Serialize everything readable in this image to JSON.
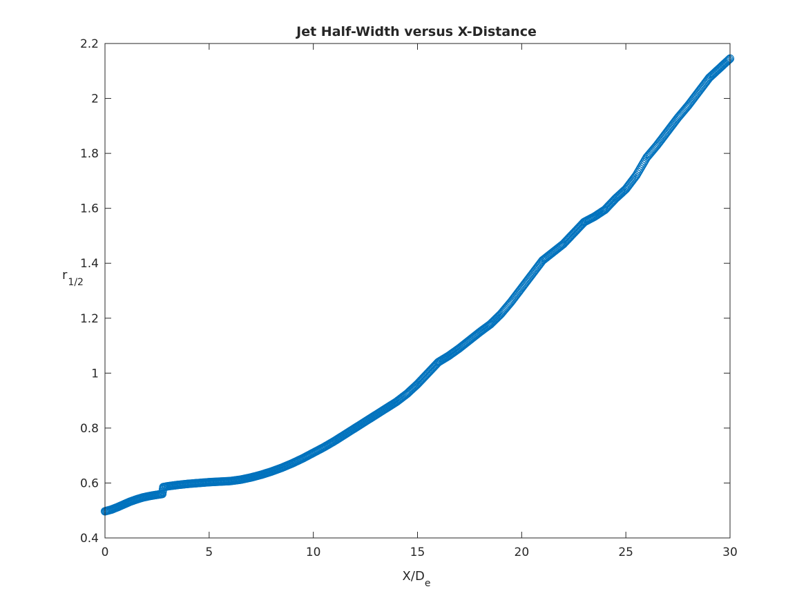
{
  "chart_data": {
    "type": "scatter",
    "title": "Jet Half-Width versus X-Distance",
    "xlabel": {
      "main": "X/D",
      "subscript": "e"
    },
    "ylabel": {
      "main": "r",
      "subscript": "1/2"
    },
    "xlim": [
      0,
      30
    ],
    "ylim": [
      0.4,
      2.2
    ],
    "x_ticks": [
      0,
      5,
      10,
      15,
      20,
      25,
      30
    ],
    "x_tick_labels": [
      "0",
      "5",
      "10",
      "15",
      "20",
      "25",
      "30"
    ],
    "y_ticks": [
      0.4,
      0.6,
      0.8,
      1.0,
      1.2,
      1.4,
      1.6,
      1.8,
      2.0,
      2.2
    ],
    "y_tick_labels": [
      "0.4",
      "0.6",
      "0.8",
      "1",
      "1.2",
      "1.4",
      "1.6",
      "1.8",
      "2",
      "2.2"
    ],
    "grid": false,
    "legend": "none",
    "marker": "open-circle",
    "marker_color": "#0072BD",
    "series": [
      {
        "x": [
          0.0,
          0.3,
          0.6,
          0.9,
          1.2,
          1.5,
          1.8,
          2.1,
          2.4,
          2.75,
          2.8,
          3.0,
          3.5,
          4.0,
          4.5,
          5.0,
          5.5,
          6.0,
          6.5,
          7.0,
          7.5,
          8.0,
          8.5,
          9.0,
          9.5,
          10.0,
          10.5,
          11.0,
          11.5,
          12.0,
          12.5,
          13.0,
          13.5,
          14.0,
          14.5,
          15.0,
          15.5,
          16.0,
          16.5,
          17.0,
          17.5,
          18.0,
          18.5,
          19.0,
          19.5,
          20.0,
          20.5,
          21.0,
          21.5,
          22.0,
          22.5,
          23.0,
          23.5,
          24.0,
          24.5,
          25.0,
          25.5,
          26.0,
          26.5,
          27.0,
          27.5,
          28.0,
          28.5,
          29.0,
          29.5,
          30.0
        ],
        "y": [
          0.497,
          0.503,
          0.512,
          0.522,
          0.532,
          0.54,
          0.547,
          0.552,
          0.556,
          0.56,
          0.585,
          0.588,
          0.593,
          0.597,
          0.6,
          0.603,
          0.605,
          0.607,
          0.612,
          0.62,
          0.63,
          0.642,
          0.656,
          0.672,
          0.69,
          0.71,
          0.73,
          0.752,
          0.776,
          0.8,
          0.824,
          0.848,
          0.872,
          0.896,
          0.925,
          0.96,
          1.0,
          1.04,
          1.063,
          1.09,
          1.12,
          1.15,
          1.178,
          1.215,
          1.26,
          1.31,
          1.36,
          1.41,
          1.44,
          1.47,
          1.51,
          1.55,
          1.57,
          1.595,
          1.635,
          1.67,
          1.72,
          1.785,
          1.83,
          1.88,
          1.93,
          1.975,
          2.025,
          2.075,
          2.11,
          2.145
        ]
      }
    ]
  }
}
